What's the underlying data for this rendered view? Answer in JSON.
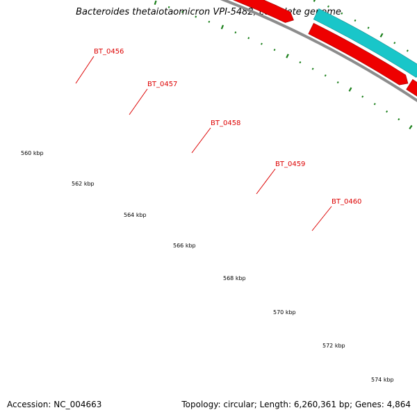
{
  "title": "Bacteroides thetaiotaomicron VPI-5482, complete genome",
  "footer": {
    "accession": "Accession: NC_004663",
    "topology": "Topology: circular; Length: 6,260,361 bp; Genes: 4,864"
  },
  "colors": {
    "forward_strand": "#19c6c9",
    "reverse_strand": "#ee0000",
    "gene_label": "#dd0000",
    "backbone": "#8c8c8c",
    "tick": "#1a7f1a"
  },
  "position_labels": [
    "560 kbp",
    "562 kbp",
    "564 kbp",
    "566 kbp",
    "568 kbp",
    "570 kbp",
    "572 kbp",
    "574 kbp"
  ],
  "genes": [
    {
      "name": "BT_0456",
      "strand": "forward"
    },
    {
      "name": "BT_0457",
      "strand": "forward"
    },
    {
      "name": "BT_0458",
      "strand": "forward"
    },
    {
      "name": "BT_0459",
      "strand": "forward"
    },
    {
      "name": "BT_0460",
      "strand": "forward"
    }
  ]
}
